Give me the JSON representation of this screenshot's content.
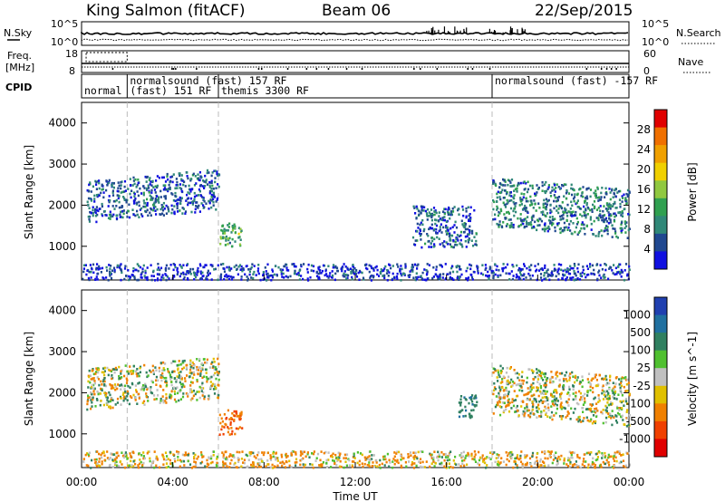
{
  "header": {
    "station": "King Salmon (fitACF)",
    "beam": "Beam 06",
    "date": "22/Sep/2015"
  },
  "noise_panel": {
    "left_label": "N.Sky",
    "right_label": "N.Search",
    "left_ticks": [
      "10^5",
      "10^0"
    ],
    "right_ticks": [
      "10^5",
      "10^0"
    ]
  },
  "freq_panel": {
    "left_label_1": "Freq.",
    "left_label_2": "[MHz]",
    "right_label": "Nave",
    "left_ticks": [
      "18",
      "8"
    ],
    "right_ticks": [
      "60",
      "0"
    ]
  },
  "cpid_panel": {
    "label": "CPID",
    "programs": [
      {
        "text": "normal",
        "start_hour": 0.0
      },
      {
        "text": "normalsound (fast) 157 RF",
        "start_hour": 2.0
      },
      {
        "text": "(fast) 151 RF",
        "start_hour": 2.0
      },
      {
        "text": "themis 3300 RF",
        "start_hour": 6.0
      },
      {
        "text": "normalsound (fast) -157 RF",
        "start_hour": 18.0
      }
    ],
    "boundaries_hours": [
      2.0,
      6.0,
      18.0
    ]
  },
  "power_panel": {
    "ylabel": "Slant Range [km]",
    "yticks": [
      "4000",
      "3000",
      "2000",
      "1000"
    ],
    "colorbar_label": "Power [dB]",
    "colorbar_ticks": [
      "28",
      "24",
      "20",
      "16",
      "12",
      "8",
      "4"
    ],
    "colorbar_colors": [
      "#e00000",
      "#f07000",
      "#f0a000",
      "#f0d000",
      "#90c840",
      "#30a050",
      "#308878",
      "#204890",
      "#1010e0"
    ]
  },
  "velocity_panel": {
    "ylabel": "Slant Range [km]",
    "yticks": [
      "4000",
      "3000",
      "2000",
      "1000"
    ],
    "colorbar_label": "Velocity [m s^-1]",
    "colorbar_ticks": [
      "1000",
      "500",
      "100",
      "25",
      "-25",
      "-100",
      "-500",
      "-1000"
    ],
    "colorbar_colors": [
      "#2040b0",
      "#2070a0",
      "#308060",
      "#50c030",
      "#c0c0c0",
      "#e0c000",
      "#f08000",
      "#f04000",
      "#e00000"
    ]
  },
  "x_axis": {
    "label": "Time UT",
    "ticks": [
      "00:00",
      "04:00",
      "08:00",
      "12:00",
      "16:00",
      "20:00",
      "00:00"
    ]
  },
  "chart_data": {
    "type": "heatmap",
    "x_range_hours": [
      0,
      24
    ],
    "y_range_km": [
      180,
      4500
    ],
    "dashed_time_markers_hours": [
      2.0,
      6.0,
      18.0
    ],
    "power_regions_approx": [
      {
        "t_start": 0.2,
        "t_end": 6.0,
        "range_start": 1600,
        "range_end": 2600,
        "power_db": 8
      },
      {
        "t_start": 6.0,
        "t_end": 7.0,
        "range_start": 1000,
        "range_end": 1600,
        "power_db": 14
      },
      {
        "t_start": 14.5,
        "t_end": 17.3,
        "range_start": 1000,
        "range_end": 2000,
        "power_db": 8
      },
      {
        "t_start": 18.0,
        "t_end": 24.0,
        "range_start": 1500,
        "range_end": 2700,
        "power_db": 10
      },
      {
        "t_start": 0.0,
        "t_end": 24.0,
        "range_start": 200,
        "range_end": 600,
        "power_db": 6
      }
    ],
    "velocity_regions_approx": [
      {
        "t_start": 0.2,
        "t_end": 6.0,
        "range_start": 1600,
        "range_end": 2600,
        "velocity": 0
      },
      {
        "t_start": 6.0,
        "t_end": 7.0,
        "range_start": 1000,
        "range_end": 1600,
        "velocity": -300
      },
      {
        "t_start": 16.5,
        "t_end": 17.3,
        "range_start": 1400,
        "range_end": 2000,
        "velocity": 200
      },
      {
        "t_start": 18.0,
        "t_end": 24.0,
        "range_start": 1500,
        "range_end": 2700,
        "velocity": 0
      },
      {
        "t_start": 0.0,
        "t_end": 24.0,
        "range_start": 200,
        "range_end": 600,
        "velocity": -50
      }
    ]
  }
}
